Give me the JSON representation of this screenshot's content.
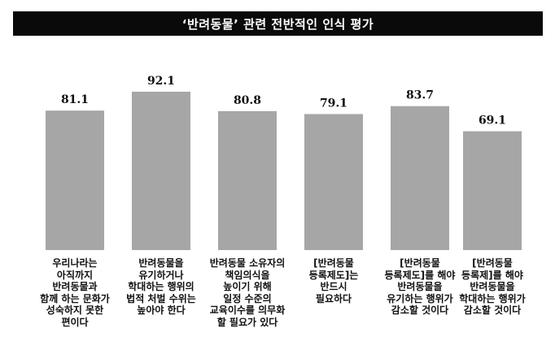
{
  "chart_data": {
    "type": "bar",
    "title": "‘반려동물’ 관련 전반적인 인식 평가",
    "categories": [
      [
        "우리나라는",
        "아직까지",
        "반려동물과",
        "함께 하는 문화가",
        "성숙하지 못한",
        "편이다"
      ],
      [
        "반려동물을",
        "유기하거나",
        "학대하는 행위의",
        "법적 처벌 수위는",
        "높아야 한다"
      ],
      [
        "반려동물 소유자의",
        "책임의식을",
        "높이기 위해",
        "일정 수준의",
        "교육이수를 의무화",
        "할 필요가 있다"
      ],
      [
        "[반려동물",
        "등록제도]는",
        "반드시",
        "필요하다"
      ],
      [
        "[반려동물",
        "등록제도]를 해야",
        "반려동물을",
        "유기하는 행위가",
        "감소할 것이다"
      ],
      [
        "[반려동물",
        "등록제]를 해야",
        "반려동물을",
        "학대하는 행위가",
        "감소할 것이다"
      ]
    ],
    "values": [
      81.1,
      92.1,
      80.8,
      79.1,
      83.7,
      69.1
    ],
    "value_labels": [
      "81.1",
      "92.1",
      "80.8",
      "79.1",
      "83.7",
      "69.1"
    ],
    "bar_color": "#a6a6a6",
    "title_bg_color": "#0a0a0a",
    "grid": false,
    "legend": "none"
  }
}
